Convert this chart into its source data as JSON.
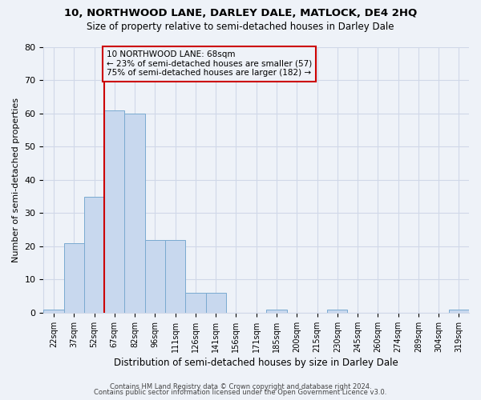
{
  "title": "10, NORTHWOOD LANE, DARLEY DALE, MATLOCK, DE4 2HQ",
  "subtitle": "Size of property relative to semi-detached houses in Darley Dale",
  "xlabel": "Distribution of semi-detached houses by size in Darley Dale",
  "ylabel": "Number of semi-detached properties",
  "bin_labels": [
    "22sqm",
    "37sqm",
    "52sqm",
    "67sqm",
    "82sqm",
    "96sqm",
    "111sqm",
    "126sqm",
    "141sqm",
    "156sqm",
    "171sqm",
    "185sqm",
    "200sqm",
    "215sqm",
    "230sqm",
    "245sqm",
    "260sqm",
    "274sqm",
    "289sqm",
    "304sqm",
    "319sqm"
  ],
  "bin_values": [
    1,
    21,
    35,
    61,
    60,
    22,
    22,
    6,
    6,
    0,
    0,
    1,
    0,
    0,
    1,
    0,
    0,
    0,
    0,
    0,
    1
  ],
  "bar_color": "#c8d8ee",
  "bar_edge_color": "#7aaad0",
  "vline_color": "#cc0000",
  "vline_x": 3,
  "annotation_title": "10 NORTHWOOD LANE: 68sqm",
  "annotation_line1": "← 23% of semi-detached houses are smaller (57)",
  "annotation_line2": "75% of semi-detached houses are larger (182) →",
  "annotation_box_color": "#cc0000",
  "ylim": [
    0,
    80
  ],
  "yticks": [
    0,
    10,
    20,
    30,
    40,
    50,
    60,
    70,
    80
  ],
  "footer1": "Contains HM Land Registry data © Crown copyright and database right 2024.",
  "footer2": "Contains public sector information licensed under the Open Government Licence v3.0.",
  "bg_color": "#eef2f8",
  "plot_bg_color": "#eef2f8",
  "grid_color": "#d0d8e8"
}
